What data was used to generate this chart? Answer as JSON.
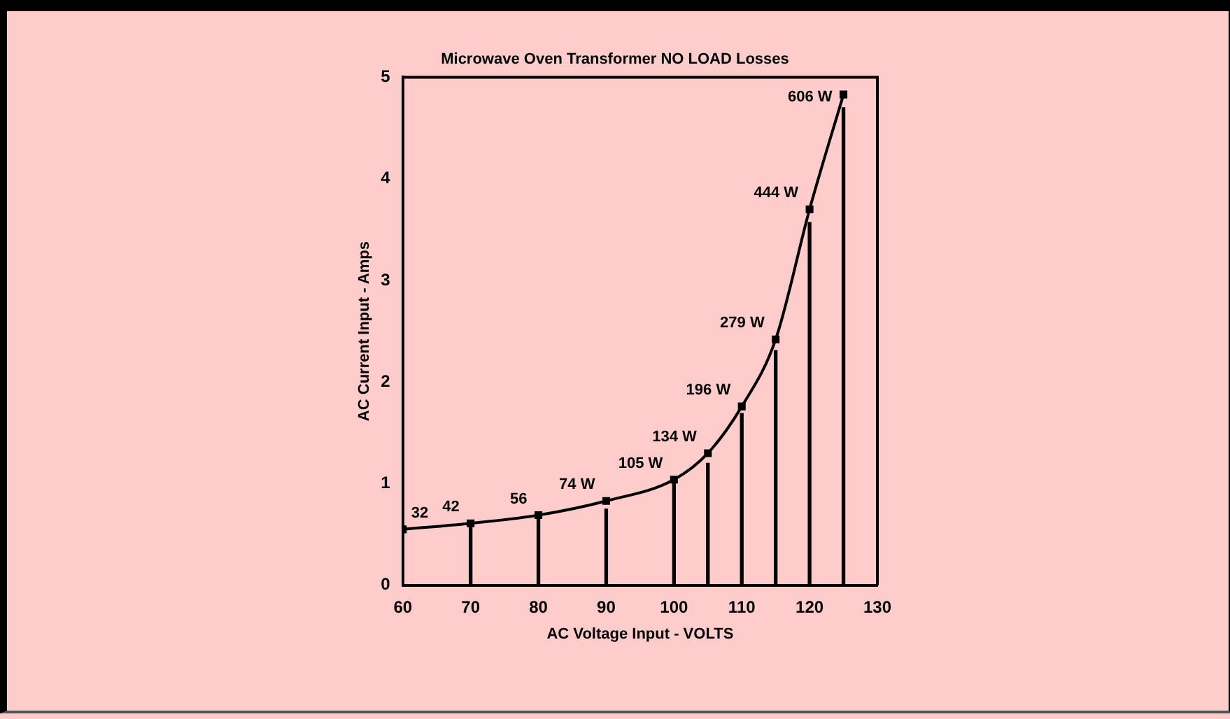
{
  "chart_data": {
    "type": "line",
    "title": "Microwave Oven Transformer NO LOAD Losses",
    "xlabel": "AC Voltage Input - VOLTS",
    "ylabel": "AC Current Input - Amps",
    "series": [
      {
        "color": "#000000",
        "x": [
          60,
          70,
          80,
          90,
          100,
          105,
          110,
          115,
          120,
          125
        ],
        "values": [
          0.55,
          0.61,
          0.69,
          0.83,
          1.04,
          1.3,
          1.76,
          2.42,
          3.7,
          4.83
        ]
      },
      {
        "type": "bar",
        "color": "#000000",
        "x": [
          70,
          80,
          90,
          100,
          105,
          110,
          115,
          120,
          125
        ],
        "values": [
          0.57,
          0.65,
          0.75,
          1.0,
          1.2,
          1.69,
          2.31,
          3.57,
          4.7
        ]
      }
    ],
    "annotations": [
      {
        "text": "32",
        "x": 60,
        "y": 0.55
      },
      {
        "text": "42",
        "x": 70,
        "y": 0.61
      },
      {
        "text": "56",
        "x": 80,
        "y": 0.69
      },
      {
        "text": "74 W",
        "x": 90,
        "y": 0.83
      },
      {
        "text": "105 W",
        "x": 100,
        "y": 1.04
      },
      {
        "text": "134 W",
        "x": 105,
        "y": 1.3
      },
      {
        "text": "196 W",
        "x": 110,
        "y": 1.76
      },
      {
        "text": "279 W",
        "x": 115,
        "y": 2.42
      },
      {
        "text": "444 W",
        "x": 120,
        "y": 3.7
      },
      {
        "text": "606 W",
        "x": 125,
        "y": 4.83
      }
    ],
    "xlim": [
      60,
      130
    ],
    "xticks": [
      60,
      70,
      80,
      90,
      100,
      110,
      120,
      130
    ],
    "ylim": [
      0,
      5
    ],
    "yticks": [
      0,
      1,
      2,
      3,
      4,
      5
    ],
    "grid": false,
    "legend": false,
    "marker": "square",
    "line_style": "solid"
  }
}
